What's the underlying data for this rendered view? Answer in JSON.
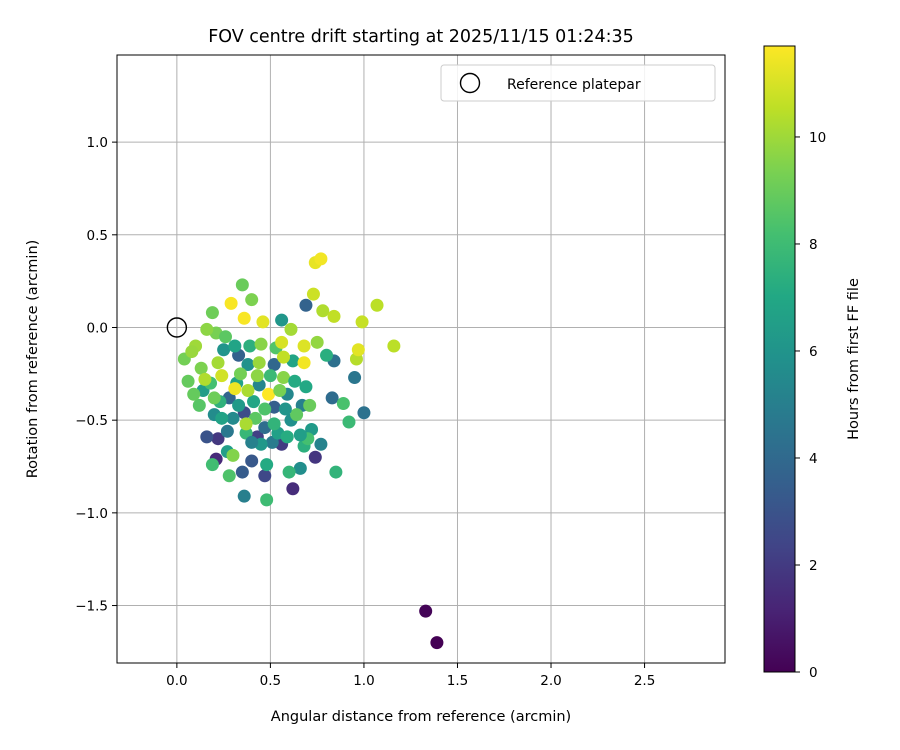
{
  "chart_data": {
    "type": "scatter",
    "title": "FOV centre drift starting at 2025/11/15 01:24:35",
    "xlabel": "Angular distance from reference (arcmin)",
    "ylabel": "Rotation from reference (arcmin)",
    "xlim": [
      -0.32,
      2.93
    ],
    "ylim": [
      -1.81,
      1.47
    ],
    "xticks": [
      0.0,
      0.5,
      1.0,
      1.5,
      2.0,
      2.5
    ],
    "xtick_labels": [
      "0.0",
      "0.5",
      "1.0",
      "1.5",
      "2.0",
      "2.5"
    ],
    "yticks": [
      -1.5,
      -1.0,
      -0.5,
      0.0,
      0.5,
      1.0
    ],
    "ytick_labels": [
      "−1.5",
      "−1.0",
      "−0.5",
      "0.0",
      "0.5",
      "1.0"
    ],
    "grid": true,
    "legend": {
      "placement": "top-right",
      "entries": [
        "Reference platepar"
      ]
    },
    "reference_point": {
      "x": 0.0,
      "y": 0.0,
      "label": "Reference platepar"
    },
    "colorbar": {
      "label": "Hours from first FF file",
      "colormap": "viridis",
      "range": [
        0,
        11.7
      ],
      "ticks": [
        0,
        2,
        4,
        6,
        8,
        10
      ],
      "tick_labels": [
        "0",
        "2",
        "4",
        "6",
        "8",
        "10"
      ]
    },
    "points": [
      {
        "x": 1.33,
        "y": -1.53,
        "t": 0.1
      },
      {
        "x": 1.39,
        "y": -1.7,
        "t": 0.0
      },
      {
        "x": 0.21,
        "y": -0.71,
        "t": 1.4
      },
      {
        "x": 0.22,
        "y": -0.6,
        "t": 1.9
      },
      {
        "x": 0.62,
        "y": -0.87,
        "t": 1.5
      },
      {
        "x": 0.74,
        "y": -0.7,
        "t": 1.8
      },
      {
        "x": 0.47,
        "y": -0.8,
        "t": 2.5
      },
      {
        "x": 0.43,
        "y": -0.59,
        "t": 2.2
      },
      {
        "x": 0.56,
        "y": -0.63,
        "t": 2.0
      },
      {
        "x": 0.36,
        "y": -0.46,
        "t": 2.7
      },
      {
        "x": 0.16,
        "y": -0.59,
        "t": 3.0
      },
      {
        "x": 0.4,
        "y": -0.72,
        "t": 3.2
      },
      {
        "x": 0.35,
        "y": -0.78,
        "t": 3.4
      },
      {
        "x": 0.52,
        "y": -0.43,
        "t": 3.5
      },
      {
        "x": 0.33,
        "y": -0.15,
        "t": 3.6
      },
      {
        "x": 0.28,
        "y": -0.38,
        "t": 3.8
      },
      {
        "x": 0.52,
        "y": -0.2,
        "t": 3.9
      },
      {
        "x": 0.69,
        "y": 0.12,
        "t": 3.7
      },
      {
        "x": 0.83,
        "y": -0.38,
        "t": 4.1
      },
      {
        "x": 0.84,
        "y": -0.18,
        "t": 4.3
      },
      {
        "x": 1.0,
        "y": -0.46,
        "t": 4.4
      },
      {
        "x": 0.95,
        "y": -0.27,
        "t": 4.6
      },
      {
        "x": 0.47,
        "y": -0.54,
        "t": 4.2
      },
      {
        "x": 0.36,
        "y": -0.91,
        "t": 5.0
      },
      {
        "x": 0.51,
        "y": -0.62,
        "t": 4.8
      },
      {
        "x": 0.67,
        "y": -0.42,
        "t": 5.1
      },
      {
        "x": 0.77,
        "y": -0.63,
        "t": 5.2
      },
      {
        "x": 0.59,
        "y": -0.36,
        "t": 5.4
      },
      {
        "x": 0.3,
        "y": -0.49,
        "t": 5.5
      },
      {
        "x": 0.44,
        "y": -0.31,
        "t": 5.3
      },
      {
        "x": 0.2,
        "y": -0.47,
        "t": 5.6
      },
      {
        "x": 0.66,
        "y": -0.76,
        "t": 5.7
      },
      {
        "x": 0.61,
        "y": -0.5,
        "t": 5.8
      },
      {
        "x": 0.38,
        "y": -0.2,
        "t": 5.9
      },
      {
        "x": 0.25,
        "y": -0.12,
        "t": 6.0
      },
      {
        "x": 0.56,
        "y": 0.04,
        "t": 6.1
      },
      {
        "x": 0.45,
        "y": -0.63,
        "t": 6.2
      },
      {
        "x": 0.72,
        "y": -0.55,
        "t": 6.3
      },
      {
        "x": 0.14,
        "y": -0.34,
        "t": 6.4
      },
      {
        "x": 0.27,
        "y": -0.67,
        "t": 6.5
      },
      {
        "x": 0.54,
        "y": -0.57,
        "t": 6.6
      },
      {
        "x": 0.32,
        "y": -0.3,
        "t": 6.7
      },
      {
        "x": 0.62,
        "y": -0.18,
        "t": 6.8
      },
      {
        "x": 0.41,
        "y": -0.4,
        "t": 6.9
      },
      {
        "x": 0.69,
        "y": -0.32,
        "t": 7.0
      },
      {
        "x": 0.48,
        "y": -0.74,
        "t": 7.1
      },
      {
        "x": 0.59,
        "y": -0.59,
        "t": 7.2
      },
      {
        "x": 0.8,
        "y": -0.15,
        "t": 7.3
      },
      {
        "x": 0.68,
        "y": -0.64,
        "t": 7.4
      },
      {
        "x": 0.23,
        "y": -0.4,
        "t": 7.5
      },
      {
        "x": 0.85,
        "y": -0.78,
        "t": 7.6
      },
      {
        "x": 0.6,
        "y": -0.78,
        "t": 7.7
      },
      {
        "x": 0.37,
        "y": -0.57,
        "t": 7.8
      },
      {
        "x": 0.92,
        "y": -0.51,
        "t": 7.9
      },
      {
        "x": 0.48,
        "y": -0.93,
        "t": 8.0
      },
      {
        "x": 0.19,
        "y": -0.74,
        "t": 8.1
      },
      {
        "x": 0.7,
        "y": -0.6,
        "t": 8.2
      },
      {
        "x": 0.89,
        "y": -0.41,
        "t": 8.3
      },
      {
        "x": 0.28,
        "y": -0.8,
        "t": 8.4
      },
      {
        "x": 0.53,
        "y": -0.11,
        "t": 8.5
      },
      {
        "x": 0.12,
        "y": -0.42,
        "t": 8.6
      },
      {
        "x": 0.42,
        "y": -0.49,
        "t": 8.7
      },
      {
        "x": 0.64,
        "y": -0.47,
        "t": 8.8
      },
      {
        "x": 0.06,
        "y": -0.29,
        "t": 8.9
      },
      {
        "x": 0.35,
        "y": 0.23,
        "t": 9.0
      },
      {
        "x": 0.19,
        "y": 0.08,
        "t": 9.1
      },
      {
        "x": 0.04,
        "y": -0.17,
        "t": 9.2
      },
      {
        "x": 0.21,
        "y": -0.03,
        "t": 9.3
      },
      {
        "x": 0.4,
        "y": 0.15,
        "t": 9.4
      },
      {
        "x": 0.3,
        "y": -0.69,
        "t": 9.5
      },
      {
        "x": 0.57,
        "y": -0.27,
        "t": 9.6
      },
      {
        "x": 0.16,
        "y": -0.01,
        "t": 9.7
      },
      {
        "x": 0.75,
        "y": -0.08,
        "t": 9.8
      },
      {
        "x": 0.44,
        "y": -0.19,
        "t": 9.9
      },
      {
        "x": 0.1,
        "y": -0.1,
        "t": 10.0
      },
      {
        "x": 0.61,
        "y": -0.01,
        "t": 10.1
      },
      {
        "x": 0.37,
        "y": -0.52,
        "t": 10.2
      },
      {
        "x": 0.78,
        "y": 0.09,
        "t": 10.3
      },
      {
        "x": 0.96,
        "y": -0.17,
        "t": 10.4
      },
      {
        "x": 1.07,
        "y": 0.12,
        "t": 10.5
      },
      {
        "x": 0.84,
        "y": 0.06,
        "t": 10.6
      },
      {
        "x": 0.99,
        "y": 0.03,
        "t": 10.7
      },
      {
        "x": 1.16,
        "y": -0.1,
        "t": 10.5
      },
      {
        "x": 0.73,
        "y": 0.18,
        "t": 10.8
      },
      {
        "x": 0.24,
        "y": -0.26,
        "t": 10.9
      },
      {
        "x": 0.56,
        "y": -0.08,
        "t": 11.0
      },
      {
        "x": 0.68,
        "y": -0.1,
        "t": 11.1
      },
      {
        "x": 0.97,
        "y": -0.12,
        "t": 11.2
      },
      {
        "x": 0.74,
        "y": 0.35,
        "t": 11.3
      },
      {
        "x": 0.77,
        "y": 0.37,
        "t": 11.5
      },
      {
        "x": 0.29,
        "y": 0.13,
        "t": 11.6
      },
      {
        "x": 0.31,
        "y": -0.33,
        "t": 11.4
      },
      {
        "x": 0.49,
        "y": -0.36,
        "t": 11.7
      },
      {
        "x": 0.46,
        "y": 0.03,
        "t": 11.2
      },
      {
        "x": 0.36,
        "y": 0.05,
        "t": 11.6
      },
      {
        "x": 0.68,
        "y": -0.19,
        "t": 11.5
      },
      {
        "x": 0.13,
        "y": -0.22,
        "t": 9.4
      },
      {
        "x": 0.18,
        "y": -0.3,
        "t": 8.2
      },
      {
        "x": 0.26,
        "y": -0.05,
        "t": 8.7
      },
      {
        "x": 0.39,
        "y": -0.1,
        "t": 7.4
      },
      {
        "x": 0.5,
        "y": -0.26,
        "t": 7.9
      },
      {
        "x": 0.33,
        "y": -0.42,
        "t": 6.3
      },
      {
        "x": 0.58,
        "y": -0.44,
        "t": 6.0
      },
      {
        "x": 0.45,
        "y": -0.09,
        "t": 9.6
      },
      {
        "x": 0.08,
        "y": -0.13,
        "t": 9.9
      },
      {
        "x": 0.22,
        "y": -0.19,
        "t": 10.1
      },
      {
        "x": 0.34,
        "y": -0.25,
        "t": 9.2
      },
      {
        "x": 0.47,
        "y": -0.44,
        "t": 8.4
      },
      {
        "x": 0.63,
        "y": -0.29,
        "t": 7.1
      },
      {
        "x": 0.71,
        "y": -0.42,
        "t": 9.0
      },
      {
        "x": 0.57,
        "y": -0.16,
        "t": 10.6
      },
      {
        "x": 0.4,
        "y": -0.62,
        "t": 5.1
      },
      {
        "x": 0.27,
        "y": -0.56,
        "t": 4.7
      },
      {
        "x": 0.15,
        "y": -0.28,
        "t": 10.3
      },
      {
        "x": 0.09,
        "y": -0.36,
        "t": 8.9
      },
      {
        "x": 0.31,
        "y": -0.1,
        "t": 6.8
      },
      {
        "x": 0.52,
        "y": -0.52,
        "t": 7.6
      },
      {
        "x": 0.66,
        "y": -0.58,
        "t": 6.5
      },
      {
        "x": 0.43,
        "y": -0.26,
        "t": 9.7
      },
      {
        "x": 0.2,
        "y": -0.38,
        "t": 9.1
      },
      {
        "x": 0.38,
        "y": -0.34,
        "t": 10.2
      },
      {
        "x": 0.55,
        "y": -0.34,
        "t": 9.3
      },
      {
        "x": 0.24,
        "y": -0.49,
        "t": 6.7
      }
    ]
  }
}
